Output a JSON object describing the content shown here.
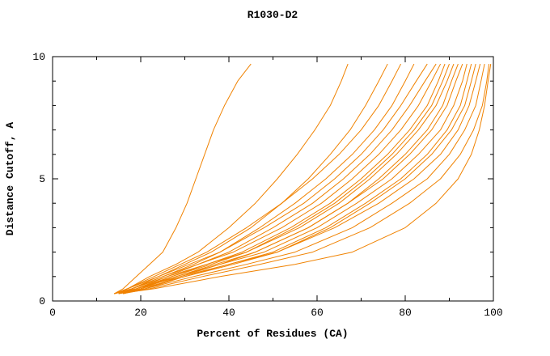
{
  "chart_data": {
    "type": "line",
    "title": "R1030-D2",
    "xlabel": "Percent of Residues (CA)",
    "ylabel": "Distance Cutoff, A",
    "xlim": [
      0,
      100
    ],
    "ylim": [
      0,
      10
    ],
    "x_ticks": [
      0,
      20,
      40,
      60,
      80,
      100
    ],
    "x_minor_ticks": [
      10,
      30,
      50,
      70,
      90
    ],
    "y_ticks": [
      0,
      5,
      10
    ],
    "y_minor_ticks": [
      1,
      2,
      3,
      4,
      6,
      7,
      8,
      9
    ],
    "grid": false,
    "legend": "none",
    "line_color": "#f08200",
    "background_color": "#ffffff",
    "axis_color": "#000000",
    "y_levels": [
      0.3,
      0.5,
      1,
      1.5,
      2,
      3,
      4,
      5,
      6,
      7,
      8,
      9,
      9.7
    ],
    "series": [
      [
        14,
        16,
        19,
        22,
        25,
        28,
        30.5,
        32.5,
        34.5,
        36.5,
        39,
        42,
        45
      ],
      [
        14,
        17,
        22,
        28,
        33,
        40,
        46,
        51,
        55.5,
        59.5,
        63,
        65.5,
        67
      ],
      [
        15,
        18,
        24,
        30,
        36,
        45,
        52,
        58,
        63,
        67.5,
        71,
        74,
        76
      ],
      [
        14,
        17,
        23,
        29,
        35,
        44,
        52,
        59,
        65,
        70,
        74,
        77,
        79
      ],
      [
        15,
        18,
        25,
        32,
        38,
        47,
        55,
        62,
        68,
        73,
        77,
        80,
        82
      ],
      [
        14,
        17,
        24,
        31,
        38,
        48,
        57,
        64,
        70,
        75,
        79,
        82.5,
        85
      ],
      [
        15,
        19,
        26,
        33,
        40,
        50,
        59,
        66,
        72,
        77,
        81,
        84.5,
        87
      ],
      [
        14,
        18,
        25,
        33,
        41,
        52,
        61,
        68,
        74,
        79,
        83,
        86,
        88
      ],
      [
        16,
        20,
        27,
        35,
        43,
        54,
        63,
        70,
        76,
        81,
        85,
        87.5,
        89
      ],
      [
        15,
        19,
        27,
        36,
        44,
        55,
        64,
        71,
        77,
        82,
        86,
        88.5,
        90
      ],
      [
        14,
        18,
        26,
        35,
        44,
        56,
        65,
        72,
        78,
        83,
        87,
        89.5,
        91
      ],
      [
        16,
        21,
        29,
        38,
        46,
        58,
        67,
        74,
        80,
        85,
        88.5,
        90.5,
        92
      ],
      [
        15,
        20,
        28,
        37,
        46,
        58,
        67,
        75,
        81,
        86,
        89.5,
        91.5,
        93
      ],
      [
        14,
        19,
        28,
        38,
        48,
        60,
        69,
        77,
        83,
        88,
        91,
        93,
        94
      ],
      [
        16,
        21,
        30,
        40,
        50,
        62,
        71,
        79,
        85,
        89.5,
        92.5,
        94,
        95
      ],
      [
        15,
        20,
        30,
        41,
        51,
        63,
        72,
        80,
        86,
        90.5,
        93.5,
        95,
        96
      ],
      [
        14,
        19,
        29,
        40,
        51,
        64,
        74,
        82,
        88,
        92,
        94.5,
        96,
        97
      ],
      [
        15,
        21,
        32,
        44,
        55,
        68,
        77,
        85,
        90,
        93.5,
        96,
        97.2,
        98
      ],
      [
        16,
        22,
        34,
        47,
        59,
        72,
        81,
        88,
        92.5,
        95.5,
        97.5,
        98.5,
        99
      ],
      [
        15,
        23,
        38,
        55,
        68,
        80,
        87,
        92,
        95,
        96.8,
        98,
        98.8,
        99.4
      ]
    ]
  }
}
